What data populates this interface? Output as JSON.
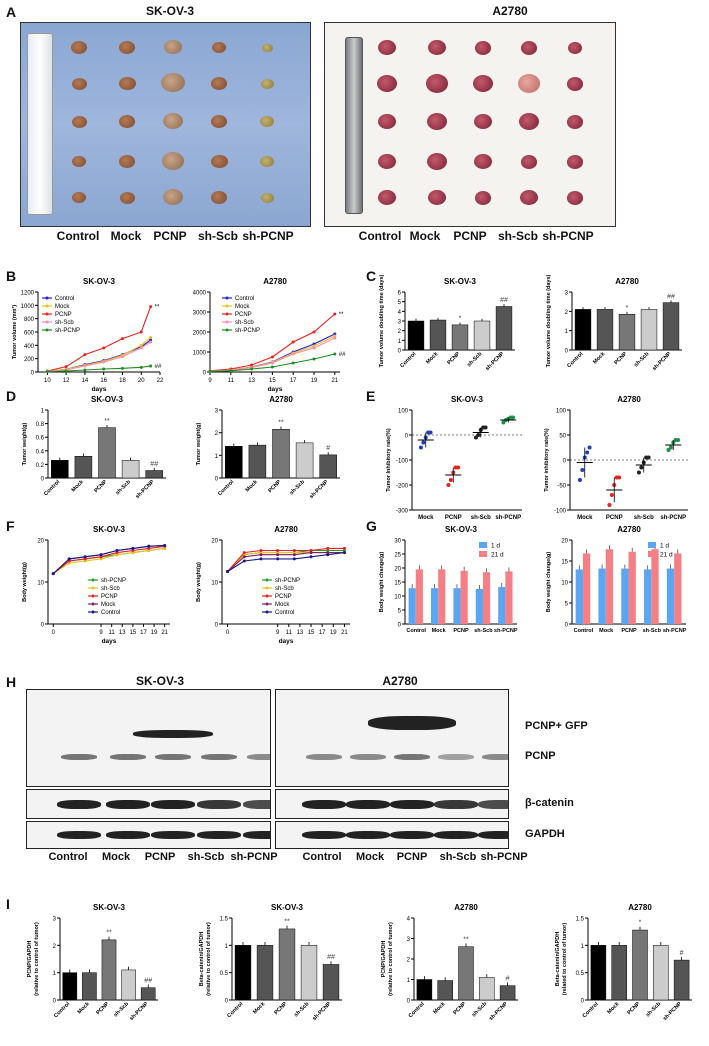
{
  "panels": {
    "A": {
      "letter": "A",
      "title_left": "SK-OV-3",
      "title_right": "A2780",
      "groups": [
        "Control",
        "Mock",
        "PCNP",
        "sh-Scb",
        "sh-PCNP"
      ]
    },
    "B": {
      "letter": "B"
    },
    "C": {
      "letter": "C"
    },
    "D": {
      "letter": "D"
    },
    "E": {
      "letter": "E"
    },
    "F": {
      "letter": "F"
    },
    "G": {
      "letter": "G"
    },
    "H": {
      "letter": "H",
      "title_left": "SK-OV-3",
      "title_right": "A2780",
      "labels": [
        "PCNP+ GFP",
        "PCNP",
        "β-catenin",
        "GAPDH"
      ],
      "groups": [
        "Control",
        "Mock",
        "PCNP",
        "sh-Scb",
        "sh-PCNP"
      ]
    },
    "I": {
      "letter": "I"
    }
  },
  "colors": {
    "control": "#1f1fdc",
    "mock": "#e8c41a",
    "pcnp": "#e8231e",
    "shscb": "#ff8ab0",
    "shpcnp": "#1e8f1e",
    "blue_bar": "#5aa6f2",
    "pink_bar": "#f47f85"
  },
  "chart_data": [
    {
      "id": "B1",
      "type": "line",
      "title": "SK-OV-3",
      "xlabel": "days",
      "ylabel": "Tumor volume (mm³)",
      "x": [
        10,
        12,
        14,
        16,
        18,
        20,
        21
      ],
      "xticks": [
        10,
        12,
        14,
        16,
        18,
        20,
        22
      ],
      "ylim": [
        0,
        1200
      ],
      "yticks": [
        0,
        200,
        400,
        600,
        800,
        1000,
        1200
      ],
      "series": [
        {
          "name": "Control",
          "values": [
            10,
            40,
            110,
            170,
            260,
            380,
            480
          ]
        },
        {
          "name": "Mock",
          "values": [
            10,
            40,
            100,
            160,
            250,
            400,
            520
          ]
        },
        {
          "name": "PCNP",
          "values": [
            15,
            80,
            260,
            360,
            500,
            600,
            980
          ]
        },
        {
          "name": "sh-Scb",
          "values": [
            10,
            30,
            90,
            150,
            230,
            360,
            450
          ]
        },
        {
          "name": "sh-PCNP",
          "values": [
            5,
            15,
            30,
            45,
            55,
            70,
            90
          ]
        }
      ],
      "annotations": [
        "**",
        "##"
      ]
    },
    {
      "id": "B2",
      "type": "line",
      "title": "A2780",
      "xlabel": "days",
      "ylabel": "",
      "x": [
        9,
        11,
        13,
        15,
        17,
        19,
        21
      ],
      "xticks": [
        9,
        11,
        13,
        15,
        17,
        19,
        21
      ],
      "ylim": [
        0,
        4000
      ],
      "yticks": [
        0,
        1000,
        2000,
        3000,
        4000
      ],
      "series": [
        {
          "name": "Control",
          "values": [
            50,
            100,
            250,
            500,
            1000,
            1400,
            1900
          ]
        },
        {
          "name": "Mock",
          "values": [
            50,
            100,
            240,
            480,
            950,
            1300,
            1800
          ]
        },
        {
          "name": "PCNP",
          "values": [
            60,
            150,
            350,
            750,
            1500,
            2000,
            2900
          ]
        },
        {
          "name": "sh-Scb",
          "values": [
            50,
            90,
            220,
            450,
            900,
            1200,
            1700
          ]
        },
        {
          "name": "sh-PCNP",
          "values": [
            30,
            60,
            150,
            250,
            450,
            650,
            900
          ]
        }
      ],
      "annotations": [
        "**",
        "##"
      ]
    },
    {
      "id": "C1",
      "type": "bar",
      "title": "SK-OV-3",
      "ylabel": "Tumor volume doubling time (days)",
      "categories": [
        "Control",
        "Mock",
        "PCNP",
        "sh-Scb",
        "sh-PCNP"
      ],
      "values": [
        3.0,
        3.1,
        2.6,
        3.0,
        4.5
      ],
      "ylim": [
        0,
        6
      ],
      "yticks": [
        0,
        1,
        2,
        3,
        4,
        5,
        6
      ],
      "annotations": [
        "",
        "",
        "*",
        "",
        "##"
      ]
    },
    {
      "id": "C2",
      "type": "bar",
      "title": "A2780",
      "ylabel": "Tumor volume doubling time (days)",
      "categories": [
        "Control",
        "Mock",
        "PCNP",
        "sh-Scb",
        "sh-PCNP"
      ],
      "values": [
        2.1,
        2.1,
        1.85,
        2.1,
        2.45
      ],
      "ylim": [
        0,
        3
      ],
      "yticks": [
        0,
        1,
        2,
        3
      ],
      "annotations": [
        "",
        "",
        "*",
        "",
        "##"
      ]
    },
    {
      "id": "D1",
      "type": "bar",
      "title": "SK-OV-3",
      "ylabel": "Tumor weight(g)",
      "categories": [
        "Control",
        "Mock",
        "PCNP",
        "sh-Scb",
        "sh-PCNP"
      ],
      "values": [
        0.26,
        0.32,
        0.74,
        0.26,
        0.11
      ],
      "ylim": [
        0,
        1.0
      ],
      "yticks": [
        0.0,
        0.2,
        0.4,
        0.6,
        0.8,
        1.0
      ],
      "annotations": [
        "",
        "",
        "**",
        "",
        "##"
      ]
    },
    {
      "id": "D2",
      "type": "bar",
      "title": "A2780",
      "ylabel": "Tumor weight(g)",
      "categories": [
        "Control",
        "Mock",
        "PCNP",
        "sh-Scb",
        "sh-PCNP"
      ],
      "values": [
        1.4,
        1.45,
        2.15,
        1.55,
        1.02
      ],
      "ylim": [
        0,
        3
      ],
      "yticks": [
        0,
        1,
        2,
        3
      ],
      "annotations": [
        "",
        "",
        "**",
        "",
        "#"
      ]
    },
    {
      "id": "E1",
      "type": "scatter",
      "title": "SK-OV-3",
      "ylabel": "Tumor Inhibitory rate(%)",
      "categories": [
        "Mock",
        "PCNP",
        "sh-Scb",
        "sh-PCNP"
      ],
      "ylim": [
        -300,
        100
      ],
      "yticks": [
        -300,
        -200,
        -100,
        0,
        100
      ],
      "means": [
        -20,
        -160,
        10,
        60
      ]
    },
    {
      "id": "E2",
      "type": "scatter",
      "title": "A2780",
      "ylabel": "Tumor inhibitory rate(%)",
      "categories": [
        "Mock",
        "PCNP",
        "sh-Scb",
        "sh-PCNP"
      ],
      "ylim": [
        -100,
        100
      ],
      "yticks": [
        -100,
        -50,
        0,
        50,
        100
      ],
      "means": [
        -5,
        -60,
        -10,
        30
      ]
    },
    {
      "id": "F1",
      "type": "line",
      "title": "SK-OV-3",
      "xlabel": "days",
      "ylabel": "Body weight(g)",
      "x": [
        0,
        9,
        11,
        13,
        15,
        17,
        19,
        21
      ],
      "xticks": [
        "0",
        "9",
        "11",
        "13",
        "15",
        "17",
        "19",
        "21"
      ],
      "ylim": [
        0,
        20
      ],
      "yticks": [
        0,
        10,
        20
      ],
      "series": [
        {
          "name": "sh-PCNP",
          "values": [
            12,
            15,
            15.5,
            16,
            16.5,
            17,
            17.5,
            18
          ]
        },
        {
          "name": "sh-Scb",
          "values": [
            12,
            14.5,
            15,
            15.5,
            16.5,
            17,
            17.5,
            18
          ]
        },
        {
          "name": "PCNP",
          "values": [
            12,
            15,
            15.5,
            16,
            17,
            17.5,
            18,
            18.5
          ]
        },
        {
          "name": "Mock",
          "values": [
            12,
            15.5,
            16,
            16.5,
            17.5,
            18,
            18.5,
            18.7
          ]
        },
        {
          "name": "Control",
          "values": [
            12,
            15.5,
            16,
            16.5,
            17.5,
            18,
            18.5,
            18.7
          ]
        }
      ]
    },
    {
      "id": "F2",
      "type": "line",
      "title": "A2780",
      "xlabel": "days",
      "ylabel": "Body weight(g)",
      "x": [
        0,
        9,
        11,
        13,
        15,
        17,
        19,
        21
      ],
      "xticks": [
        "0",
        "9",
        "11",
        "13",
        "15",
        "17",
        "19",
        "21"
      ],
      "ylim": [
        0,
        20
      ],
      "yticks": [
        0,
        10,
        20
      ],
      "series": [
        {
          "name": "sh-PCNP",
          "values": [
            12.5,
            16.5,
            17,
            17,
            17,
            17.5,
            17.5,
            17.5
          ]
        },
        {
          "name": "sh-Scb",
          "values": [
            12.5,
            16.5,
            17,
            17,
            17,
            17,
            17,
            17
          ]
        },
        {
          "name": "PCNP",
          "values": [
            12.5,
            17,
            17.5,
            17.5,
            17.5,
            17.5,
            18,
            18
          ]
        },
        {
          "name": "Mock",
          "values": [
            12.5,
            16,
            16.5,
            16.5,
            16.5,
            17,
            17,
            17
          ]
        },
        {
          "name": "Control",
          "values": [
            12.5,
            15,
            15.5,
            15.5,
            15.5,
            16,
            16.5,
            17
          ]
        }
      ]
    },
    {
      "id": "G1",
      "type": "bar",
      "title": "SK-OV-3",
      "ylabel": "Body weight change(g)",
      "categories": [
        "Control",
        "Mock",
        "PCNP",
        "sh-Scb",
        "sh-PCNP"
      ],
      "ylim": [
        0,
        30
      ],
      "yticks": [
        0,
        5,
        10,
        15,
        20,
        25,
        30
      ],
      "series": [
        {
          "name": "1 d",
          "values": [
            12.8,
            12.8,
            12.8,
            12.5,
            13.2
          ]
        },
        {
          "name": "21 d",
          "values": [
            19.5,
            19.5,
            19.0,
            18.5,
            18.8
          ]
        }
      ]
    },
    {
      "id": "G2",
      "type": "bar",
      "title": "A2780",
      "ylabel": "Body weight change(g)",
      "categories": [
        "Control",
        "Mock",
        "PCNP",
        "sh-Scb",
        "sh-PCNP"
      ],
      "ylim": [
        0,
        20
      ],
      "yticks": [
        0,
        5,
        10,
        15,
        20
      ],
      "series": [
        {
          "name": "1 d",
          "values": [
            13.0,
            13.2,
            13.2,
            13.0,
            13.2
          ]
        },
        {
          "name": "21 d",
          "values": [
            16.8,
            17.8,
            17.2,
            17.8,
            16.8
          ]
        }
      ]
    },
    {
      "id": "I1",
      "type": "bar",
      "title": "SK-OV-3",
      "ylabel": "PCNP/GAPDH\n(relative to control of tumor)",
      "categories": [
        "Control",
        "Mock",
        "PCNP",
        "sh-Scb",
        "sh-PCNP"
      ],
      "values": [
        1.0,
        1.0,
        2.2,
        1.1,
        0.45
      ],
      "ylim": [
        0,
        3
      ],
      "yticks": [
        0,
        1,
        2,
        3
      ],
      "annotations": [
        "",
        "",
        "**",
        "",
        "##"
      ]
    },
    {
      "id": "I2",
      "type": "bar",
      "title": "SK-OV-3",
      "ylabel": "Beta-catenin/GAPDH\n(relative to control of tumor)",
      "categories": [
        "Control",
        "Mock",
        "PCNP",
        "sh-Scb",
        "sh-PCNP"
      ],
      "values": [
        1.0,
        1.0,
        1.3,
        1.0,
        0.65
      ],
      "ylim": [
        0,
        1.5
      ],
      "yticks": [
        0.0,
        0.5,
        1.0,
        1.5
      ],
      "annotations": [
        "",
        "",
        "**",
        "",
        "##"
      ]
    },
    {
      "id": "I3",
      "type": "bar",
      "title": "A2780",
      "ylabel": "PCNP/GAPDH\n(relative to control of tumor)",
      "categories": [
        "Control",
        "Mock",
        "PCNP",
        "sh-Scb",
        "sh-PCNP"
      ],
      "values": [
        1.0,
        0.95,
        2.6,
        1.1,
        0.7
      ],
      "ylim": [
        0,
        4
      ],
      "yticks": [
        0,
        1,
        2,
        3,
        4
      ],
      "annotations": [
        "",
        "",
        "**",
        "",
        "#"
      ]
    },
    {
      "id": "I4",
      "type": "bar",
      "title": "A2780",
      "ylabel": "Beta-catenin/GAPDH\n(related to control of tumor)",
      "categories": [
        "Control",
        "Mock",
        "PCNP",
        "sh-Scb",
        "sh-PCNP"
      ],
      "values": [
        1.0,
        1.0,
        1.28,
        1.0,
        0.73
      ],
      "ylim": [
        0,
        1.5
      ],
      "yticks": [
        0.0,
        0.5,
        1.0,
        1.5
      ],
      "annotations": [
        "",
        "",
        "*",
        "",
        "#"
      ]
    }
  ]
}
